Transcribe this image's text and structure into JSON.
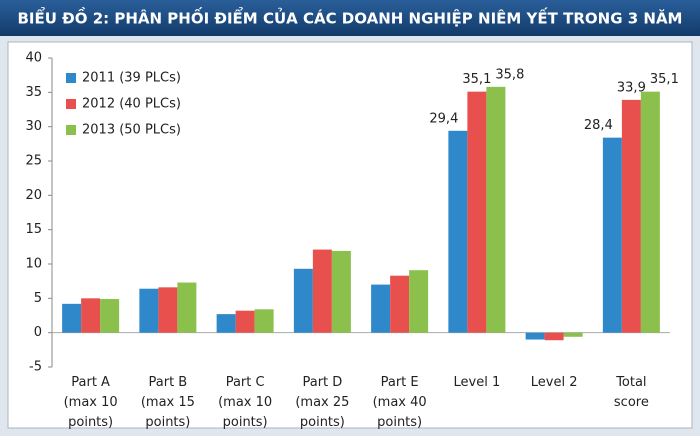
{
  "chart_data": {
    "type": "bar",
    "title": "BIỂU ĐỒ 2: PHÂN PHỐI ĐIỂM CỦA CÁC DOANH NGHIỆP NIÊM YẾT TRONG 3 NĂM",
    "categories": [
      "Part A\n(max 10\npoints)",
      "Part B\n(max 15\npoints)",
      "Part C\n(max 10\npoints)",
      "Part D\n(max 25\npoints)",
      "Part E\n(max 40\npoints)",
      "Level 1",
      "Level 2",
      "Total\nscore"
    ],
    "series": [
      {
        "name": "2011 (39 PLCs)",
        "color": "#2f88c9",
        "values": [
          4.2,
          6.4,
          2.7,
          9.3,
          7.0,
          29.4,
          -1.0,
          28.4
        ],
        "value_labels": [
          null,
          null,
          null,
          null,
          null,
          "29,4",
          null,
          "28,4"
        ]
      },
      {
        "name": "2012 (40 PLCs)",
        "color": "#e8504d",
        "values": [
          5.0,
          6.6,
          3.2,
          12.1,
          8.3,
          35.1,
          -1.1,
          33.9
        ],
        "value_labels": [
          null,
          null,
          null,
          null,
          null,
          "35,1",
          null,
          "33,9"
        ]
      },
      {
        "name": "2013 (50 PLCs)",
        "color": "#8cc04c",
        "values": [
          4.9,
          7.3,
          3.4,
          11.9,
          9.1,
          35.8,
          -0.6,
          35.1
        ],
        "value_labels": [
          null,
          null,
          null,
          null,
          null,
          "35,8",
          null,
          "35,1"
        ]
      }
    ],
    "ylim": [
      -5,
      40
    ],
    "yticks": [
      -5,
      0,
      5,
      10,
      15,
      20,
      25,
      30,
      35,
      40
    ],
    "grid": false,
    "legend": "top-left"
  }
}
